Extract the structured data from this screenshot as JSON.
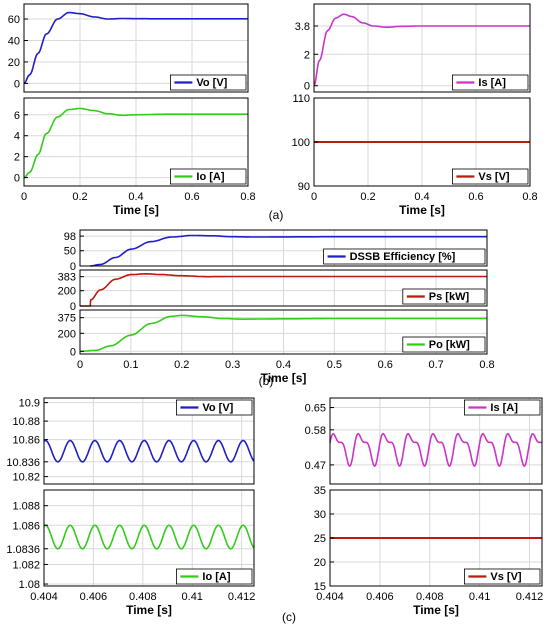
{
  "figure": {
    "captions": [
      "(a)",
      "(b)",
      "(c)"
    ]
  },
  "chart_data": [
    {
      "id": "a1",
      "type": "line",
      "xlabel": "",
      "ylabel": "",
      "xlim": [
        0,
        0.8
      ],
      "ylim": [
        -8,
        74
      ],
      "grid": true,
      "legend": "bottom-right",
      "yticks": [
        "0",
        "20",
        "40",
        "60"
      ],
      "xticks": [],
      "series": [
        {
          "name": "Vo [V]",
          "color": "#1f1fc8",
          "x": [
            0,
            0.02,
            0.05,
            0.08,
            0.12,
            0.16,
            0.2,
            0.25,
            0.3,
            0.35,
            0.4,
            0.5,
            0.6,
            0.7,
            0.8
          ],
          "y": [
            0,
            8,
            28,
            46,
            60,
            66,
            65,
            62,
            60,
            60.5,
            60.3,
            60.2,
            60.2,
            60.2,
            60.2
          ]
        }
      ]
    },
    {
      "id": "a2",
      "type": "line",
      "xlabel": "",
      "ylabel": "",
      "xlim": [
        0,
        0.8
      ],
      "ylim": [
        -0.8,
        7.6
      ],
      "grid": true,
      "legend": "bottom-right",
      "yticks": [
        "0",
        "2",
        "4",
        "6"
      ],
      "xticks": [],
      "series": [
        {
          "name": "Io [A]",
          "color": "#33cc1a",
          "x": [
            0,
            0.02,
            0.05,
            0.08,
            0.12,
            0.16,
            0.2,
            0.25,
            0.3,
            0.35,
            0.4,
            0.5,
            0.6,
            0.7,
            0.8
          ],
          "y": [
            0,
            0.5,
            2.2,
            4.2,
            5.8,
            6.5,
            6.6,
            6.4,
            6.1,
            5.95,
            6.0,
            6.05,
            6.05,
            6.05,
            6.05
          ]
        }
      ]
    },
    {
      "id": "a3",
      "type": "line",
      "xlabel": "",
      "ylabel": "",
      "xlim": [
        0,
        0.8
      ],
      "ylim": [
        -0.4,
        5.2
      ],
      "grid": true,
      "legend": "bottom-right",
      "yticks": [
        "0",
        "2",
        "3.8"
      ],
      "xticks": [],
      "series": [
        {
          "name": "Is [A]",
          "color": "#cc33cc",
          "x": [
            0,
            0.02,
            0.05,
            0.08,
            0.11,
            0.14,
            0.18,
            0.22,
            0.27,
            0.32,
            0.4,
            0.5,
            0.6,
            0.7,
            0.8
          ],
          "y": [
            0,
            1.6,
            3.5,
            4.3,
            4.55,
            4.4,
            4.0,
            3.8,
            3.72,
            3.78,
            3.8,
            3.8,
            3.8,
            3.8,
            3.8
          ]
        }
      ]
    },
    {
      "id": "a4",
      "type": "line",
      "xlabel": "Time [s]",
      "ylabel": "",
      "xlim": [
        0,
        0.8
      ],
      "ylim": [
        90,
        110
      ],
      "grid": true,
      "legend": "bottom-right",
      "yticks": [
        "90",
        "100",
        "110"
      ],
      "xticks": [
        "0",
        "0.2",
        "0.4",
        "0.6",
        "0.8"
      ],
      "series": [
        {
          "name": "Vs [V]",
          "color": "#b81c0c",
          "x": [
            0,
            0.8
          ],
          "y": [
            100,
            100
          ]
        }
      ]
    },
    {
      "id": "a0",
      "type": "line",
      "xlabel": "Time [s]",
      "ylabel": "",
      "xlim": [
        0,
        0.8
      ],
      "ylim": [
        0,
        1
      ],
      "grid": false,
      "legend": "",
      "yticks": [],
      "xticks": [
        "0",
        "0.2",
        "0.4",
        "0.6",
        "0.8"
      ],
      "series": []
    },
    {
      "id": "b1",
      "type": "line",
      "xlabel": "",
      "ylabel": "",
      "xlim": [
        0,
        0.8
      ],
      "ylim": [
        0,
        118
      ],
      "grid": true,
      "legend": "bottom-right",
      "yticks": [
        "0",
        "50",
        "98"
      ],
      "xticks": [],
      "series": [
        {
          "name": "DSSB Efficiency [%]",
          "color": "#1f1fc8",
          "x": [
            0.02,
            0.04,
            0.07,
            0.1,
            0.14,
            0.18,
            0.22,
            0.26,
            0.3,
            0.35,
            0.4,
            0.5,
            0.6,
            0.7,
            0.8
          ],
          "y": [
            0,
            5,
            28,
            55,
            80,
            95,
            100,
            99,
            96,
            95,
            95.5,
            96,
            96,
            96,
            96
          ]
        }
      ]
    },
    {
      "id": "b2",
      "type": "line",
      "xlabel": "",
      "ylabel": "",
      "xlim": [
        0,
        0.8
      ],
      "ylim": [
        0,
        470
      ],
      "grid": true,
      "legend": "bottom-right",
      "yticks": [
        "0",
        "200",
        "383"
      ],
      "xticks": [],
      "series": [
        {
          "name": "Ps [kW]",
          "color": "#b81c0c",
          "x": [
            0,
            0.02,
            0.021,
            0.04,
            0.07,
            0.1,
            0.13,
            0.16,
            0.2,
            0.25,
            0.3,
            0.4,
            0.5,
            0.6,
            0.7,
            0.8
          ],
          "y": [
            0,
            0,
            80,
            210,
            350,
            410,
            420,
            410,
            395,
            383,
            385,
            385,
            385,
            385,
            385,
            385
          ]
        }
      ]
    },
    {
      "id": "b3",
      "type": "line",
      "xlabel": "Time [s]",
      "ylabel": "",
      "xlim": [
        0,
        0.8
      ],
      "ylim": [
        -30,
        460
      ],
      "grid": true,
      "legend": "bottom-right",
      "yticks": [
        "0",
        "200",
        "375"
      ],
      "xticks": [
        "0",
        "0.1",
        "0.2",
        "0.3",
        "0.4",
        "0.5",
        "0.6",
        "0.7",
        "0.8"
      ],
      "series": [
        {
          "name": "Po [kW]",
          "color": "#33cc1a",
          "x": [
            0,
            0.03,
            0.06,
            0.1,
            0.14,
            0.18,
            0.2,
            0.24,
            0.28,
            0.32,
            0.4,
            0.5,
            0.6,
            0.7,
            0.8
          ],
          "y": [
            0,
            10,
            60,
            180,
            310,
            390,
            400,
            385,
            365,
            358,
            362,
            365,
            365,
            365,
            365
          ]
        }
      ]
    },
    {
      "id": "c1",
      "type": "line",
      "xlabel": "",
      "ylabel": "",
      "xlim": [
        0.404,
        0.4125
      ],
      "ylim": [
        10.812,
        10.905
      ],
      "grid": true,
      "legend": "top-right",
      "yticks": [
        "10.82",
        "10.836",
        "10.86",
        "10.88",
        "10.9"
      ],
      "xticks": [],
      "series": [
        {
          "name": "Vo [V]",
          "color": "#1f1fc8",
          "wave": {
            "mean": 10.8475,
            "amplitude": 0.0115,
            "period": 0.001
          }
        }
      ]
    },
    {
      "id": "c2",
      "type": "line",
      "xlabel": "Time [s]",
      "ylabel": "",
      "xlim": [
        0.404,
        0.4125
      ],
      "ylim": [
        1.0798,
        1.0896
      ],
      "grid": true,
      "legend": "bottom-right",
      "yticks": [
        "1.08",
        "1.082",
        "1.0836",
        "1.086",
        "1.088"
      ],
      "xticks": [
        "0.404",
        "0.406",
        "0.408",
        "0.41",
        "0.412"
      ],
      "series": [
        {
          "name": "Io [A]",
          "color": "#33cc1a",
          "wave": {
            "mean": 1.0848,
            "amplitude": 0.0012,
            "period": 0.001
          }
        }
      ]
    },
    {
      "id": "c3",
      "type": "line",
      "xlabel": "",
      "ylabel": "",
      "xlim": [
        0.404,
        0.4125
      ],
      "ylim": [
        0.41,
        0.68
      ],
      "grid": true,
      "legend": "top-right",
      "yticks": [
        "0.47",
        "0.58",
        "0.65"
      ],
      "xticks": [],
      "series": [
        {
          "name": "Is [A]",
          "color": "#cc33cc",
          "wave": {
            "mean": 0.525,
            "amplitude": 0.055,
            "period": 0.001
          }
        }
      ]
    },
    {
      "id": "c4",
      "type": "line",
      "xlabel": "Time [s]",
      "ylabel": "",
      "xlim": [
        0.404,
        0.4125
      ],
      "ylim": [
        15,
        35
      ],
      "grid": true,
      "legend": "bottom-right",
      "yticks": [
        "15",
        "20",
        "25",
        "30",
        "35"
      ],
      "xticks": [
        "0.404",
        "0.406",
        "0.408",
        "0.41",
        "0.412"
      ],
      "series": [
        {
          "name": "Vs [V]",
          "color": "#b81c0c",
          "x": [
            0.404,
            0.4125
          ],
          "y": [
            25,
            25
          ]
        }
      ]
    }
  ]
}
